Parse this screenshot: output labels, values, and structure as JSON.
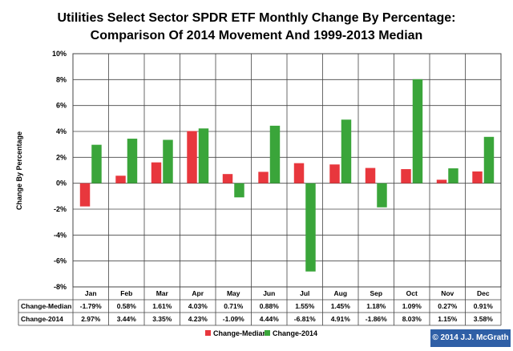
{
  "chart_data": {
    "type": "bar",
    "title": "Utilities Select Sector SPDR ETF Monthly Change By Percentage:",
    "subtitle": "Comparison Of 2014 Movement And 1999-2013 Median",
    "ylabel": "Change By Percentage",
    "ylim": [
      -8,
      10
    ],
    "yticks": [
      "10%",
      "8%",
      "6%",
      "4%",
      "2%",
      "0%",
      "-2%",
      "-4%",
      "-6%",
      "-8%"
    ],
    "yticks_values": [
      10,
      8,
      6,
      4,
      2,
      0,
      -2,
      -4,
      -6,
      -8
    ],
    "categories": [
      "Jan",
      "Feb",
      "Mar",
      "Apr",
      "May",
      "Jun",
      "Jul",
      "Aug",
      "Sep",
      "Oct",
      "Nov",
      "Dec"
    ],
    "series": [
      {
        "name": "Change-Median",
        "color": "#e8373d",
        "values": [
          -1.79,
          0.58,
          1.61,
          4.03,
          0.71,
          0.88,
          1.55,
          1.45,
          1.18,
          1.09,
          0.27,
          0.91
        ],
        "labels": [
          "-1.79%",
          "0.58%",
          "1.61%",
          "4.03%",
          "0.71%",
          "0.88%",
          "1.55%",
          "1.45%",
          "1.18%",
          "1.09%",
          "0.27%",
          "0.91%"
        ]
      },
      {
        "name": "Change-2014",
        "color": "#3aa53a",
        "values": [
          2.97,
          3.44,
          3.35,
          4.23,
          -1.09,
          4.44,
          -6.81,
          4.91,
          -1.86,
          8.03,
          1.15,
          3.58
        ],
        "labels": [
          "2.97%",
          "3.44%",
          "3.35%",
          "4.23%",
          "-1.09%",
          "4.44%",
          "-6.81%",
          "4.91%",
          "-1.86%",
          "8.03%",
          "1.15%",
          "3.58%"
        ]
      }
    ],
    "grid": "horizontal",
    "legend_position": "bottom"
  },
  "credit": "© 2014 J.J. McGrath"
}
